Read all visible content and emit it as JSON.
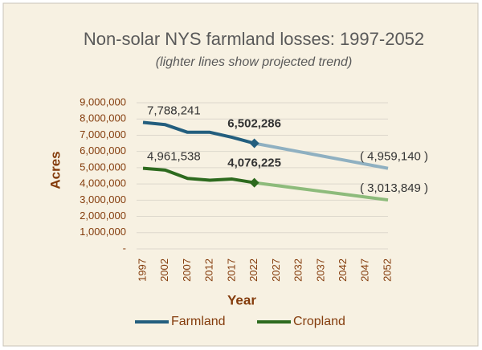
{
  "chart_data": {
    "type": "line",
    "title": "Non-solar NYS farmland losses:  1997-2052",
    "subtitle": "(lighter lines show projected trend)",
    "x_label": "Year",
    "y_label": "Acres",
    "categories": [
      "1997",
      "2002",
      "2007",
      "2012",
      "2017",
      "2022",
      "2027",
      "2032",
      "2037",
      "2042",
      "2047",
      "2052"
    ],
    "series": [
      {
        "name": "Farmland",
        "color": "#235e7e",
        "projected_color": "#8fb0c1",
        "values": [
          7788241,
          7650000,
          7180000,
          7180000,
          6870000,
          6502286,
          null,
          null,
          null,
          null,
          null,
          null
        ],
        "value_labels": [
          "7,788,241",
          null,
          null,
          null,
          null,
          "6,502,286",
          null,
          null,
          null,
          null,
          null,
          null
        ],
        "projected_values": [
          null,
          null,
          null,
          null,
          null,
          6502286,
          6245095,
          5987904,
          5730713,
          5473522,
          5216331,
          4959140
        ],
        "projected_value_labels": [
          null,
          null,
          null,
          null,
          null,
          null,
          null,
          null,
          null,
          null,
          null,
          "( 4,959,140 )"
        ]
      },
      {
        "name": "Cropland",
        "color": "#2d6a1e",
        "projected_color": "#8dbb7b",
        "values": [
          4961538,
          4850000,
          4340000,
          4230000,
          4300000,
          4076225,
          null,
          null,
          null,
          null,
          null,
          null
        ],
        "value_labels": [
          "4,961,538",
          null,
          null,
          null,
          null,
          "4,076,225",
          null,
          null,
          null,
          null,
          null,
          null
        ],
        "projected_values": [
          null,
          null,
          null,
          null,
          null,
          4076225,
          3899162,
          3722099,
          3545036,
          3367973,
          3190910,
          3013849
        ],
        "projected_value_labels": [
          null,
          null,
          null,
          null,
          null,
          null,
          null,
          null,
          null,
          null,
          null,
          "( 3,013,849 )"
        ]
      }
    ],
    "ylim": [
      0,
      9000000
    ],
    "yticks": [
      {
        "value": 0,
        "label": "-"
      },
      {
        "value": 1000000,
        "label": "1,000,000"
      },
      {
        "value": 2000000,
        "label": "2,000,000"
      },
      {
        "value": 3000000,
        "label": "3,000,000"
      },
      {
        "value": 4000000,
        "label": "4,000,000"
      },
      {
        "value": 5000000,
        "label": "5,000,000"
      },
      {
        "value": 6000000,
        "label": "6,000,000"
      },
      {
        "value": 7000000,
        "label": "7,000,000"
      },
      {
        "value": 8000000,
        "label": "8,000,000"
      },
      {
        "value": 9000000,
        "label": "9,000,000"
      }
    ],
    "grid": true,
    "legend": "bottom"
  }
}
